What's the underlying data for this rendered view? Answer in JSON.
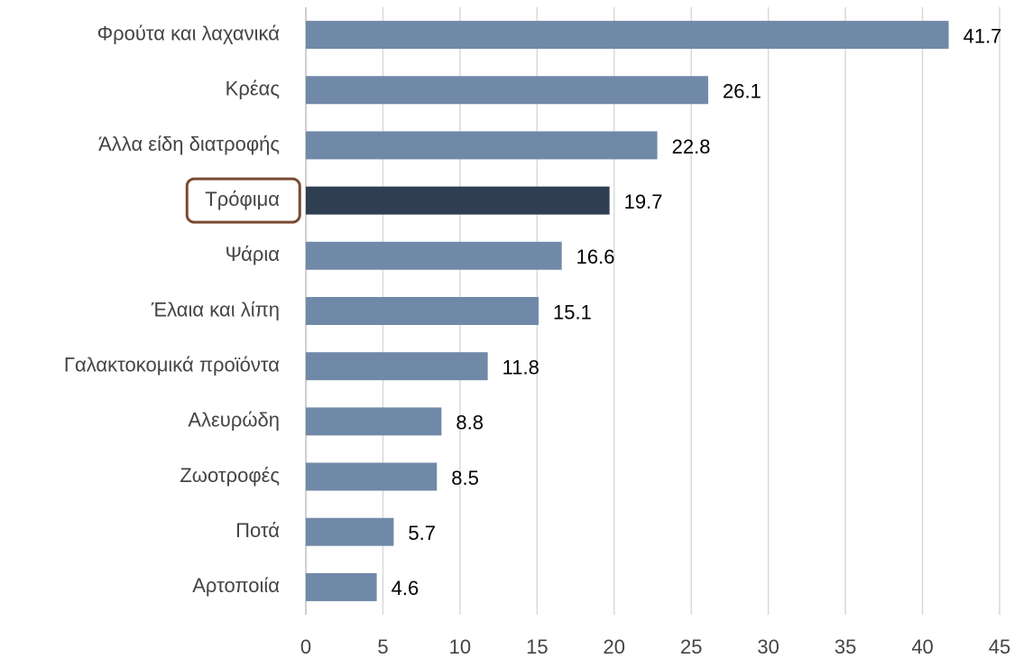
{
  "chart_data": {
    "type": "barh",
    "categories": [
      "Φρούτα και λαχανικά",
      "Κρέας",
      "Άλλα είδη διατροφής",
      "Τρόφιμα",
      "Ψάρια",
      "Έλαια και λίπη",
      "Γαλακτοκομικά προϊόντα",
      "Αλευρώδη",
      "Ζωοτροφές",
      "Ποτά",
      "Αρτοποιία"
    ],
    "values": [
      41.7,
      26.1,
      22.8,
      19.7,
      16.6,
      15.1,
      11.8,
      8.8,
      8.5,
      5.7,
      4.6
    ],
    "color": "#7189a8",
    "highlight_index": 3,
    "highlight_color": "#2f3f51",
    "highlight_box_color": "#7a4a2e",
    "xlim": [
      0,
      45
    ],
    "xticks": [
      0,
      5,
      10,
      15,
      20,
      25,
      30,
      35,
      40,
      45
    ],
    "grid": true
  }
}
